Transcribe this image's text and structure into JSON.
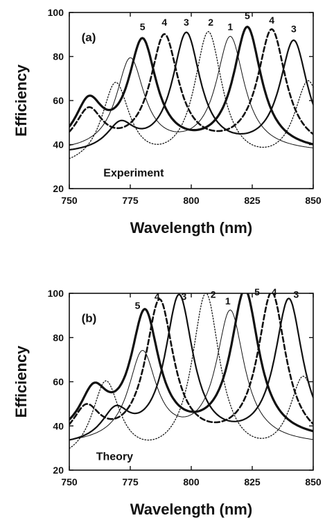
{
  "chart_data": [
    {
      "type": "line",
      "panel_label": "(a)",
      "annotation": "Experiment",
      "xlabel": "Wavelength (nm)",
      "ylabel": "Efficiency",
      "xlim": [
        750,
        850
      ],
      "ylim": [
        20,
        100
      ],
      "xticks": [
        750,
        775,
        800,
        825,
        850
      ],
      "yticks": [
        20,
        40,
        60,
        80,
        100
      ],
      "series": [
        {
          "name": "1",
          "style": "thin",
          "peaks": [
            [
              775,
              78
            ],
            [
              816,
              88
            ]
          ],
          "base": 36
        },
        {
          "name": "2",
          "style": "dotted",
          "peaks": [
            [
              769,
              66
            ],
            [
              807,
              89
            ],
            [
              848,
              67
            ]
          ],
          "base": 28
        },
        {
          "name": "3",
          "style": "medium",
          "peaks": [
            [
              771,
              47
            ],
            [
              798,
              89
            ],
            [
              842,
              86
            ]
          ],
          "base": 35
        },
        {
          "name": "4",
          "style": "dashed",
          "peaks": [
            [
              758,
              54
            ],
            [
              789,
              88
            ],
            [
              833,
              91
            ]
          ],
          "base": 36
        },
        {
          "name": "5",
          "style": "thick",
          "peaks": [
            [
              758,
              57
            ],
            [
              780,
              85
            ],
            [
              823,
              92
            ]
          ],
          "base": 36
        }
      ],
      "peak_labels": [
        {
          "text": "5",
          "x": 780,
          "y": 92
        },
        {
          "text": "4",
          "x": 789,
          "y": 94
        },
        {
          "text": "3",
          "x": 798,
          "y": 94
        },
        {
          "text": "2",
          "x": 808,
          "y": 94
        },
        {
          "text": "1",
          "x": 816,
          "y": 92
        },
        {
          "text": "5",
          "x": 823,
          "y": 97
        },
        {
          "text": "4",
          "x": 833,
          "y": 95
        },
        {
          "text": "3",
          "x": 842,
          "y": 91
        }
      ]
    },
    {
      "type": "line",
      "panel_label": "(b)",
      "annotation": "Theory",
      "xlabel": "Wavelength (nm)",
      "ylabel": "Efficiency",
      "xlim": [
        750,
        850
      ],
      "ylim": [
        20,
        100
      ],
      "xticks": [
        750,
        775,
        800,
        825,
        850
      ],
      "yticks": [
        20,
        40,
        60,
        80,
        100
      ],
      "series": [
        {
          "name": "1",
          "style": "thin",
          "peaks": [
            [
              780,
              72
            ],
            [
              816,
              91
            ]
          ],
          "base": 31
        },
        {
          "name": "2",
          "style": "dotted",
          "peaks": [
            [
              765,
              58
            ],
            [
              806,
              98
            ],
            [
              846,
              60
            ]
          ],
          "base": 22
        },
        {
          "name": "3",
          "style": "medium",
          "peaks": [
            [
              769,
              44
            ],
            [
              795,
              97
            ],
            [
              840,
              96
            ]
          ],
          "base": 30
        },
        {
          "name": "4",
          "style": "dashed",
          "peaks": [
            [
              757,
              46
            ],
            [
              787,
              95
            ],
            [
              833,
              99
            ]
          ],
          "base": 30
        },
        {
          "name": "5",
          "style": "thick",
          "peaks": [
            [
              760,
              53
            ],
            [
              781,
              89
            ],
            [
              822,
              100
            ]
          ],
          "base": 33
        }
      ],
      "peak_labels": [
        {
          "text": "5",
          "x": 778,
          "y": 93
        },
        {
          "text": "4",
          "x": 786,
          "y": 97
        },
        {
          "text": "3",
          "x": 797,
          "y": 97
        },
        {
          "text": "2",
          "x": 809,
          "y": 98
        },
        {
          "text": "1",
          "x": 815,
          "y": 95
        },
        {
          "text": "5",
          "x": 827,
          "y": 99
        },
        {
          "text": "4",
          "x": 834,
          "y": 99
        },
        {
          "text": "3",
          "x": 843,
          "y": 98
        }
      ]
    }
  ]
}
